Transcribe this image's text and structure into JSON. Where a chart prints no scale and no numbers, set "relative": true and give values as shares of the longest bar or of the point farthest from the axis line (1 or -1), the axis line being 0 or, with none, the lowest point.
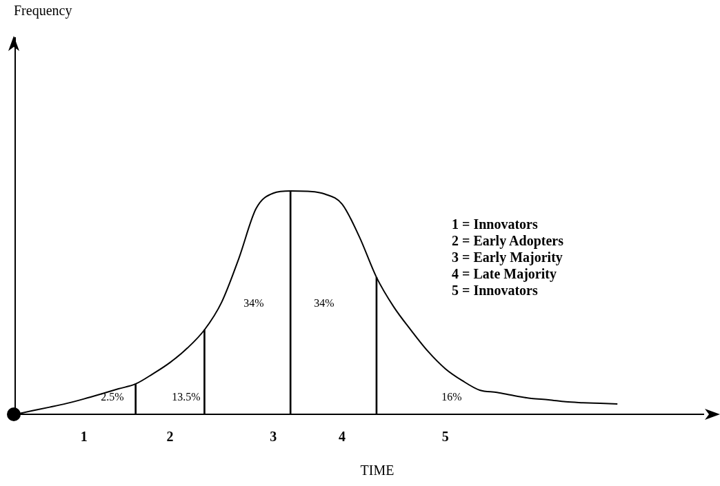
{
  "chart_data": {
    "type": "line",
    "relative": true,
    "xlabel": "TIME",
    "categories": [
      null,
      null,
      null,
      null,
      "1",
      null,
      null,
      null,
      null,
      "2",
      null,
      null,
      null,
      null,
      null,
      "3",
      null,
      null,
      null,
      "4",
      null,
      null,
      null,
      null,
      null,
      "5",
      null,
      null,
      null,
      null,
      null,
      null,
      null,
      null,
      null,
      null,
      null,
      null,
      null,
      null,
      null
    ],
    "series": [
      {
        "color": "#000000",
        "values": [
          0,
          0.016,
          0.032,
          0.049,
          0.069,
          0.091,
          0.114,
          0.136,
          0.181,
          0.232,
          0.296,
          0.378,
          0.502,
          0.698,
          0.921,
          0.99,
          1,
          0.998,
          0.986,
          0.941,
          0.795,
          0.613,
          0.481,
          0.377,
          0.281,
          0.204,
          0.15,
          0.108,
          0.098,
          0.083,
          0.071,
          0.065,
          0.056,
          0.052,
          0.049,
          0.046,
          null,
          null,
          null,
          null,
          null
        ]
      },
      {
        "type": "bar",
        "color": "#000000",
        "values": [
          null,
          null,
          null,
          null,
          null,
          null,
          null,
          0.136,
          null,
          null,
          null,
          0.378,
          null,
          null,
          null,
          null,
          1,
          null,
          null,
          null,
          null,
          0.613,
          null,
          null,
          null,
          null,
          null,
          null,
          null,
          null,
          null,
          null,
          null,
          null,
          null,
          null,
          null,
          null,
          null,
          null,
          null
        ]
      }
    ],
    "annotations": [
      "2.5%",
      "13.5%",
      "34%",
      "34%",
      "16%",
      "1 = Innovators",
      "2 = Early Adopters",
      "3 = Early Majority",
      "4 = Late Majority",
      "5 = Innovators",
      "Frequency"
    ],
    "grid": false,
    "legend": false,
    "marker": "none",
    "line_style": "solid"
  }
}
